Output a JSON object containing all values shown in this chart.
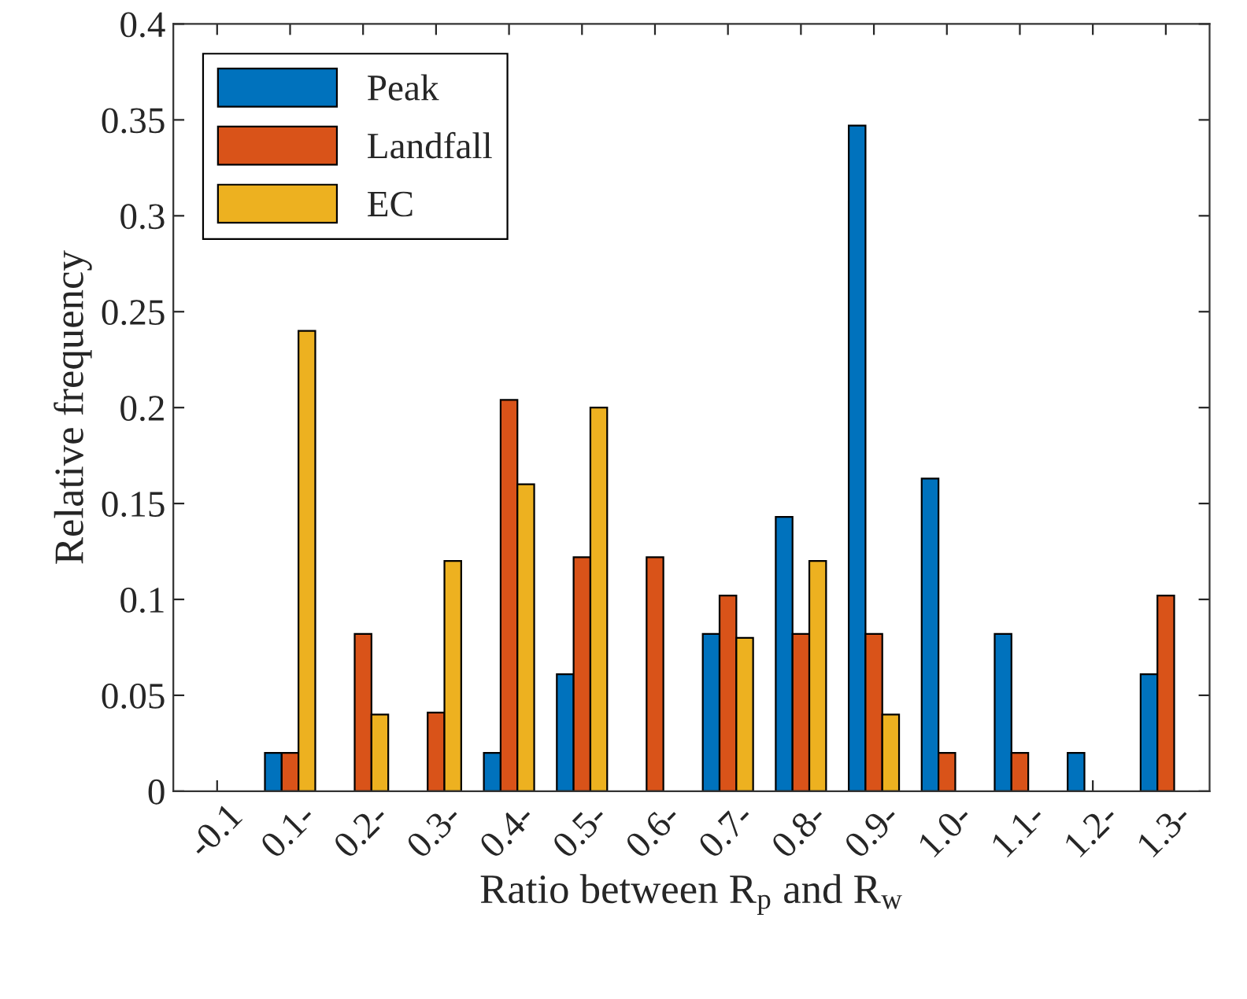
{
  "chart_data": {
    "type": "bar",
    "xlabel": "Ratio between R$_{p}$ and R$_{w}$",
    "ylabel": "Relative frequency",
    "categories": [
      "-0.1",
      "0.1-",
      "0.2-",
      "0.3-",
      "0.4-",
      "0.5-",
      "0.6-",
      "0.7-",
      "0.8-",
      "0.9-",
      "1.0-",
      "1.1-",
      "1.2-",
      "1.3-"
    ],
    "series": [
      {
        "name": "Peak",
        "color": "#0072bd",
        "values": [
          null,
          0.02,
          null,
          null,
          0.02,
          0.061,
          null,
          0.082,
          0.143,
          0.347,
          0.163,
          0.082,
          0.02,
          0.061
        ]
      },
      {
        "name": "Landfall",
        "color": "#d95319",
        "values": [
          null,
          0.02,
          0.082,
          0.041,
          0.204,
          0.122,
          0.122,
          0.102,
          0.082,
          0.082,
          0.02,
          0.02,
          null,
          0.102
        ]
      },
      {
        "name": "EC",
        "color": "#edb120",
        "values": [
          null,
          0.24,
          0.04,
          0.12,
          0.16,
          0.2,
          null,
          0.08,
          0.12,
          0.04,
          null,
          null,
          null,
          null
        ]
      }
    ],
    "ylim": [
      0,
      0.4
    ],
    "yticks": [
      0,
      0.05,
      0.1,
      0.15,
      0.2,
      0.25,
      0.3,
      0.35,
      0.4
    ],
    "legend": "top left",
    "grid": false
  }
}
